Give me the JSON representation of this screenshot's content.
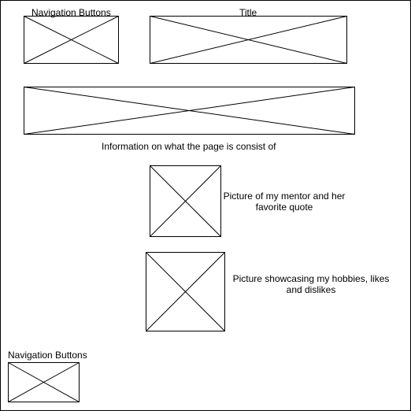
{
  "wireframe": {
    "top_nav_label": "Navigation Buttons",
    "title_label": "Title",
    "info_label": "Information on what the page is consist of",
    "mentor_label_line1": "Picture of my mentor and her",
    "mentor_label_line2": "favorite quote",
    "hobbies_label_line1": "Picture showcasing my hobbies, likes",
    "hobbies_label_line2": "and dislikes",
    "bottom_nav_label": "Navigation Buttons"
  },
  "colors": {
    "stroke": "#000000",
    "background": "#ffffff"
  }
}
